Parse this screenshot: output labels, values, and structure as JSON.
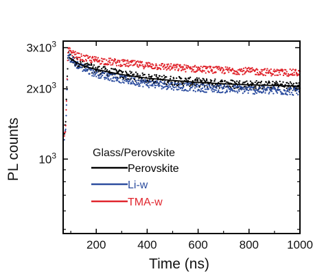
{
  "chart_data": {
    "type": "scatter",
    "title": "",
    "xlabel": "Time (ns)",
    "ylabel": "PL counts",
    "xlim": [
      70,
      1000
    ],
    "ylim": [
      480,
      3200
    ],
    "yscale": "log",
    "x_ticks": [
      {
        "value": 200,
        "label": "200"
      },
      {
        "value": 400,
        "label": "400"
      },
      {
        "value": 600,
        "label": "600"
      },
      {
        "value": 800,
        "label": "800"
      },
      {
        "value": 1000,
        "label": "1000"
      }
    ],
    "y_ticks": [
      {
        "value": 1000,
        "base": "10",
        "exp": "3"
      },
      {
        "value": 2000,
        "base": "2x10",
        "exp": "3"
      },
      {
        "value": 3000,
        "base": "3x10",
        "exp": "3"
      }
    ],
    "legend": {
      "title": "Glass/Perovskite",
      "position": "center-left"
    },
    "series": [
      {
        "name": "Perovskite",
        "color": "#000000",
        "x": [
          75,
          80,
          85,
          90,
          100,
          120,
          150,
          200,
          300,
          400,
          500,
          600,
          700,
          800,
          900,
          1000
        ],
        "y": [
          1300,
          1400,
          2200,
          2800,
          2700,
          2600,
          2500,
          2420,
          2300,
          2220,
          2170,
          2130,
          2100,
          2080,
          2065,
          2050
        ]
      },
      {
        "name": "Li-w",
        "color": "#2b4c9e",
        "x": [
          75,
          80,
          85,
          90,
          100,
          120,
          150,
          200,
          300,
          400,
          500,
          600,
          700,
          800,
          900,
          1000
        ],
        "y": [
          1250,
          1300,
          2000,
          2780,
          2680,
          2560,
          2450,
          2330,
          2200,
          2110,
          2060,
          2020,
          2000,
          1980,
          1965,
          1950
        ]
      },
      {
        "name": "TMA-w",
        "color": "#e0242c",
        "x": [
          75,
          80,
          85,
          90,
          100,
          120,
          150,
          200,
          300,
          400,
          500,
          600,
          700,
          800,
          900,
          1000
        ],
        "y": [
          1300,
          1350,
          2100,
          2950,
          2850,
          2780,
          2700,
          2650,
          2580,
          2520,
          2470,
          2430,
          2400,
          2380,
          2350,
          2340
        ]
      }
    ]
  }
}
